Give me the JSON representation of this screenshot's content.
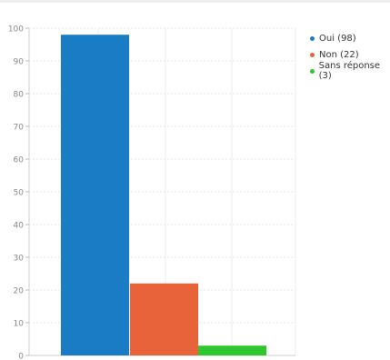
{
  "chart_data": {
    "type": "bar",
    "categories": [
      "Oui",
      "Non",
      "Sans réponse"
    ],
    "series": [
      {
        "name": "Oui (98)",
        "value": 98,
        "color": "#1a7cc5"
      },
      {
        "name": "Non (22)",
        "value": 22,
        "color": "#e8623a"
      },
      {
        "name": "Sans réponse (3)",
        "value": 3,
        "color": "#2ec82e"
      }
    ],
    "values": [
      98,
      22,
      3
    ],
    "ylim": [
      0,
      100
    ],
    "yticks": [
      0,
      10,
      20,
      30,
      40,
      50,
      60,
      70,
      80,
      90,
      100
    ],
    "grid": true,
    "legend_position": "top-right"
  }
}
